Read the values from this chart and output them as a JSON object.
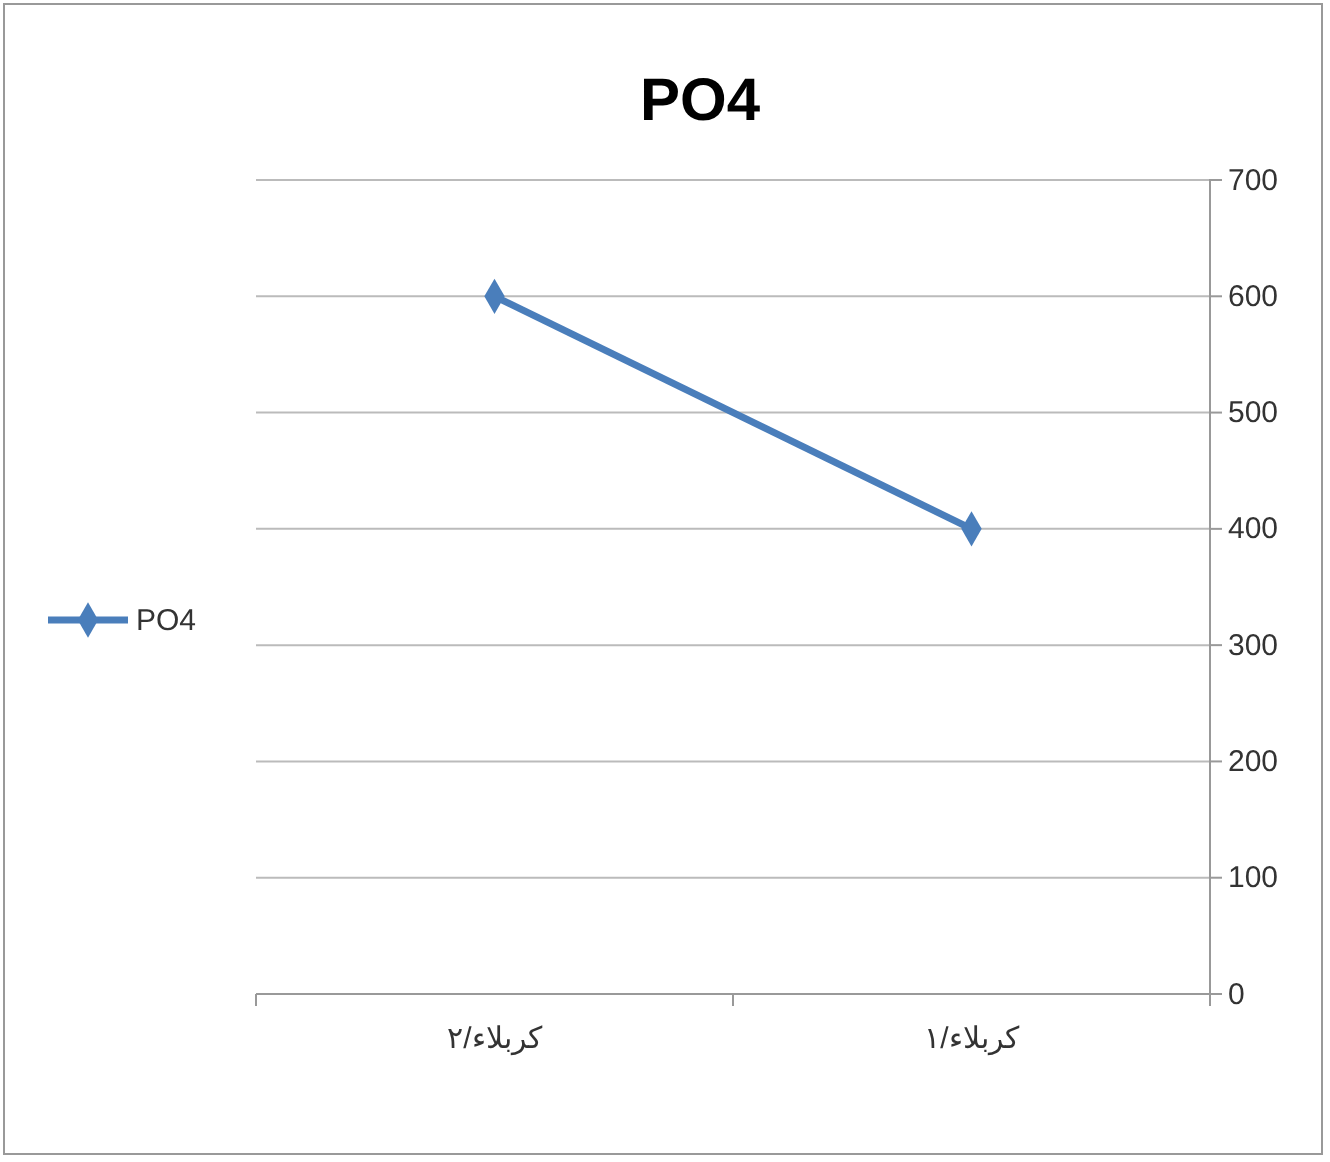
{
  "chart_data": {
    "type": "line",
    "title": "PO4",
    "categories": [
      "كربلاء/٢",
      "كربلاء/١"
    ],
    "series": [
      {
        "name": "PO4",
        "color": "#4a7ebb",
        "values": [
          600,
          400
        ]
      }
    ],
    "ylim": [
      0,
      700
    ],
    "yticks": [
      0,
      100,
      200,
      300,
      400,
      500,
      600,
      700
    ],
    "grid": "y",
    "legend": "left",
    "marker": "diamond",
    "line_style": "solid"
  }
}
